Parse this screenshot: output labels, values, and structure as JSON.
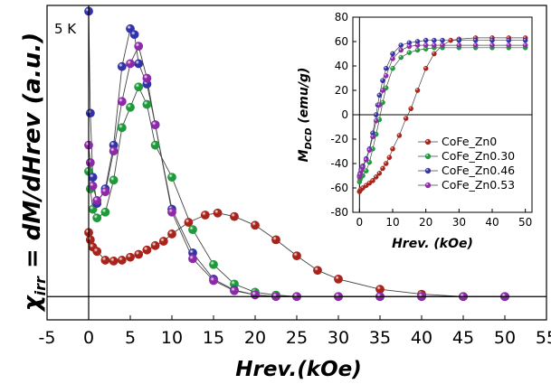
{
  "chart_data": [
    {
      "type": "scatter",
      "title": "",
      "annotation": "5 K",
      "xlabel": "Hrev.(kOe)",
      "ylabel": "χirr = dM/dHrev (a.u.)",
      "ylabel_prefix": "χ",
      "ylabel_sub": "irr",
      "ylabel_rest": " = dM/dHrev (a.u.)",
      "xlim": [
        -5,
        55
      ],
      "ylim": [
        -0.08,
        1.0
      ],
      "xticks": [
        "-5",
        "0",
        "5",
        "10",
        "15",
        "20",
        "25",
        "30",
        "35",
        "40",
        "45",
        "50",
        "55"
      ],
      "series": [
        {
          "name": "CoFe_Zn0",
          "color": "#a8231a",
          "x": [
            0,
            0.2,
            0.5,
            1,
            2,
            3,
            4,
            5,
            6,
            7,
            8,
            9,
            10,
            12,
            14,
            15.5,
            17.5,
            20,
            22.5,
            25,
            27.5,
            30,
            35,
            40,
            45,
            50
          ],
          "y": [
            0.22,
            0.195,
            0.17,
            0.155,
            0.125,
            0.122,
            0.125,
            0.135,
            0.145,
            0.16,
            0.175,
            0.19,
            0.215,
            0.255,
            0.28,
            0.287,
            0.275,
            0.245,
            0.195,
            0.14,
            0.09,
            0.06,
            0.025,
            0.008,
            0.0,
            0.0
          ]
        },
        {
          "name": "CoFe_Zn0.30",
          "color": "#1f9a3a",
          "x": [
            0,
            0.2,
            0.5,
            1,
            2,
            3,
            4,
            5,
            6,
            7,
            8,
            10,
            12.5,
            15,
            17.5,
            20,
            22.5,
            25,
            30,
            35,
            40,
            45,
            50
          ],
          "y": [
            0.43,
            0.37,
            0.3,
            0.27,
            0.29,
            0.4,
            0.58,
            0.65,
            0.72,
            0.66,
            0.52,
            0.41,
            0.23,
            0.11,
            0.043,
            0.015,
            0.005,
            0.0,
            0.0,
            0.0,
            0.0,
            0.0,
            0.0
          ]
        },
        {
          "name": "CoFe_Zn0.46",
          "color": "#3333a8",
          "x": [
            0,
            0.2,
            0.5,
            1,
            2,
            3,
            4,
            5,
            5.5,
            6,
            7,
            8,
            10,
            12.5,
            15,
            17.5,
            20,
            22.5,
            25,
            30,
            35,
            40,
            45,
            50
          ],
          "y": [
            0.98,
            0.63,
            0.41,
            0.32,
            0.37,
            0.52,
            0.79,
            0.92,
            0.9,
            0.8,
            0.73,
            0.59,
            0.3,
            0.15,
            0.06,
            0.022,
            0.006,
            0.0,
            0.0,
            0.0,
            0.0,
            0.0,
            0.0,
            0.0
          ]
        },
        {
          "name": "CoFe_Zn0.53",
          "color": "#8c2aa8",
          "x": [
            0,
            0.2,
            0.5,
            1,
            2,
            3,
            4,
            5,
            6,
            7,
            8,
            10,
            12.5,
            15,
            17.5,
            20,
            22.5,
            25,
            30,
            35,
            40,
            45,
            50
          ],
          "y": [
            0.52,
            0.46,
            0.38,
            0.33,
            0.36,
            0.5,
            0.67,
            0.8,
            0.86,
            0.75,
            0.59,
            0.29,
            0.13,
            0.055,
            0.02,
            0.006,
            0.0,
            0.0,
            0.0,
            0.0,
            0.0,
            0.0,
            0.0
          ]
        }
      ]
    },
    {
      "type": "scatter",
      "title": "",
      "xlabel": "Hrev. (kOe)",
      "ylabel_main": "M",
      "ylabel_sub": "DCD",
      "ylabel_unit": " (emu/g)",
      "xlim": [
        -2,
        52
      ],
      "ylim": [
        -80,
        80
      ],
      "xticks": [
        0,
        10,
        20,
        30,
        40,
        50
      ],
      "yticks": [
        -80,
        -60,
        -40,
        -20,
        0,
        20,
        40,
        60,
        80
      ],
      "legend_position": "right",
      "series": [
        {
          "name": "CoFe_Zn0",
          "color": "#a8231a",
          "x": [
            0,
            0.2,
            0.5,
            1,
            2,
            3,
            4,
            5,
            6,
            7,
            8,
            9,
            10,
            12,
            14,
            15.5,
            17.5,
            20,
            22.5,
            25,
            27.5,
            30,
            35,
            40,
            45,
            50
          ],
          "y": [
            -63,
            -62,
            -61,
            -60,
            -58,
            -56,
            -54,
            -51,
            -48,
            -44,
            -40,
            -35,
            -28,
            -17,
            -3,
            5,
            20,
            38,
            50,
            57,
            61,
            62,
            63,
            63,
            63,
            63
          ]
        },
        {
          "name": "CoFe_Zn0.30",
          "color": "#1f9a3a",
          "x": [
            0,
            0.2,
            0.5,
            1,
            2,
            3,
            4,
            5,
            6,
            7,
            8,
            10,
            12.5,
            15,
            17.5,
            20,
            22.5,
            25,
            30,
            35,
            40,
            45,
            50
          ],
          "y": [
            -55,
            -53,
            -51,
            -50,
            -46,
            -39,
            -28,
            -16,
            -4,
            10,
            22,
            38,
            47,
            51,
            53,
            54,
            55,
            55,
            55,
            55,
            55,
            55,
            55
          ]
        },
        {
          "name": "CoFe_Zn0.46",
          "color": "#3333a8",
          "x": [
            0,
            0.2,
            0.5,
            1,
            2,
            3,
            4,
            5,
            5.5,
            6,
            7,
            8,
            10,
            12.5,
            15,
            17.5,
            20,
            22.5,
            25,
            30,
            35,
            40,
            45,
            50
          ],
          "y": [
            -50,
            -48,
            -45,
            -42,
            -36,
            -28,
            -15,
            0,
            8,
            16,
            28,
            38,
            50,
            57,
            59,
            60,
            61,
            61,
            61,
            61,
            61,
            61,
            61,
            61
          ]
        },
        {
          "name": "CoFe_Zn0.53",
          "color": "#8c2aa8",
          "x": [
            0,
            0.2,
            0.5,
            1,
            2,
            3,
            4,
            5,
            6,
            7,
            8,
            10,
            12.5,
            15,
            17.5,
            20,
            22.5,
            25,
            30,
            35,
            40,
            45,
            50
          ],
          "y": [
            -51,
            -49,
            -46,
            -43,
            -37,
            -29,
            -18,
            -5,
            8,
            20,
            32,
            46,
            53,
            56,
            57,
            57,
            57,
            57,
            57,
            57,
            57,
            57,
            57
          ]
        }
      ]
    }
  ]
}
